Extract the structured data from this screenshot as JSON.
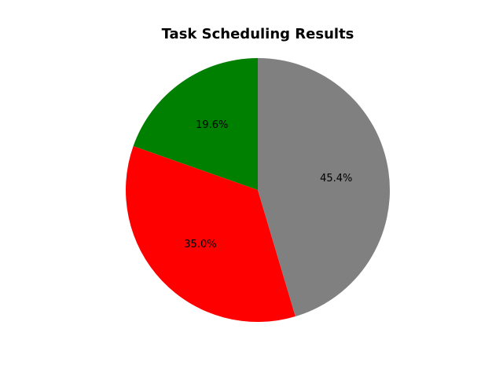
{
  "chart_data": {
    "type": "pie",
    "title": "Task Scheduling Results",
    "start_angle_deg": 90,
    "direction": "counterclockwise",
    "slices": [
      {
        "value": 19.6,
        "label": "19.6%",
        "color": "#008000"
      },
      {
        "value": 35.0,
        "label": "35.0%",
        "color": "#ff0000"
      },
      {
        "value": 45.4,
        "label": "45.4%",
        "color": "#808080"
      }
    ]
  }
}
